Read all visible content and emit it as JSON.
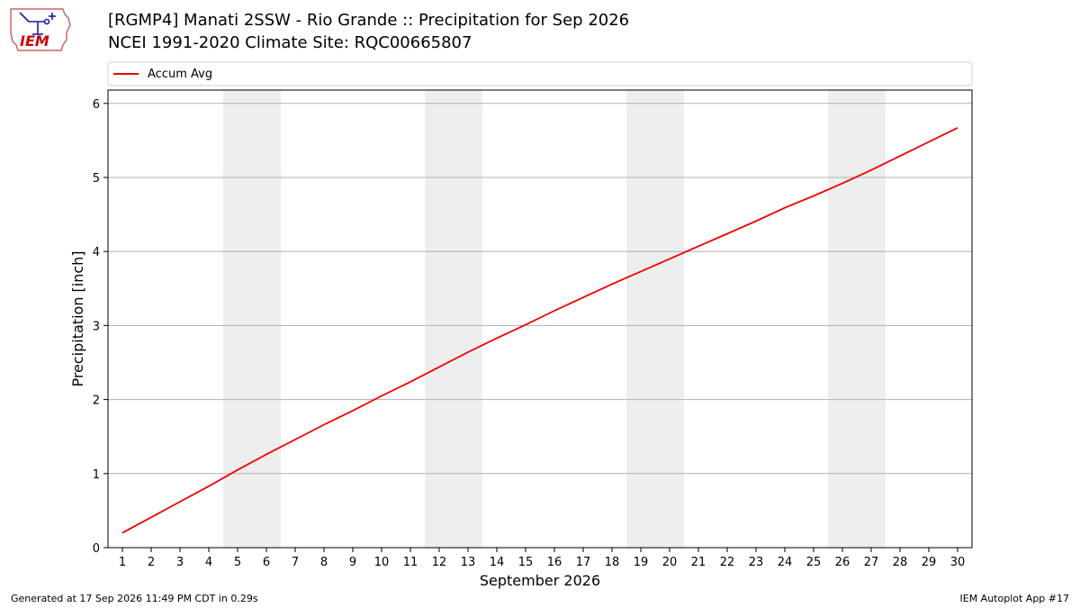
{
  "logo": {
    "text": "IEM",
    "color": "#cc0000",
    "outline_color": "#1a1aa6"
  },
  "header": {
    "title_line1": "[RGMP4] Manati 2SSW - Rio Grande :: Precipitation for Sep 2026",
    "title_line2": "NCEI 1991-2020 Climate Site: RQC00665807"
  },
  "footer": {
    "left": "Generated at 17 Sep 2026 11:49 PM CDT in 0.29s",
    "right": "IEM Autoplot App #17"
  },
  "chart_data": {
    "type": "line",
    "title": "[RGMP4] Manati 2SSW - Rio Grande :: Precipitation for Sep 2026",
    "xlabel": "September 2026",
    "ylabel": "Precipitation [inch]",
    "xlim": [
      0.5,
      30.5
    ],
    "ylim": [
      0,
      6.18
    ],
    "yticks": [
      0,
      1,
      2,
      3,
      4,
      5,
      6
    ],
    "xticks": [
      1,
      2,
      3,
      4,
      5,
      6,
      7,
      8,
      9,
      10,
      11,
      12,
      13,
      14,
      15,
      16,
      17,
      18,
      19,
      20,
      21,
      22,
      23,
      24,
      25,
      26,
      27,
      28,
      29,
      30
    ],
    "grid": "horizontal",
    "legend": "top",
    "weekend_shading": [
      [
        4.5,
        6.5
      ],
      [
        11.5,
        13.5
      ],
      [
        18.5,
        20.5
      ],
      [
        25.5,
        27.5
      ]
    ],
    "shade_color": "#eeeeee",
    "series": [
      {
        "name": "Accum Avg",
        "color": "#ee0000",
        "x": [
          1,
          2,
          3,
          4,
          5,
          6,
          7,
          8,
          9,
          10,
          11,
          12,
          13,
          14,
          15,
          16,
          17,
          18,
          19,
          20,
          21,
          22,
          23,
          24,
          25,
          26,
          27,
          28,
          29,
          30
        ],
        "values": [
          0.2,
          0.41,
          0.62,
          0.83,
          1.05,
          1.26,
          1.46,
          1.66,
          1.85,
          2.05,
          2.24,
          2.44,
          2.64,
          2.83,
          3.01,
          3.2,
          3.38,
          3.56,
          3.73,
          3.9,
          4.07,
          4.24,
          4.41,
          4.59,
          4.75,
          4.92,
          5.1,
          5.29,
          5.48,
          5.67
        ]
      }
    ]
  }
}
